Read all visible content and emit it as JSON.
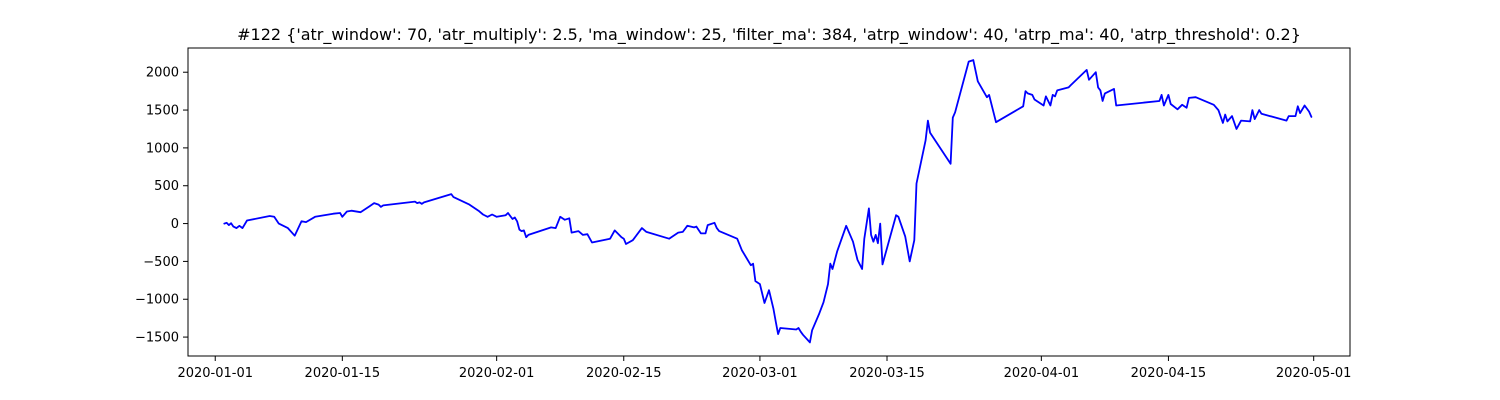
{
  "chart_data": {
    "type": "line",
    "title": "#122 {'atr_window': 70, 'atr_multiply': 2.5, 'ma_window': 25, 'filter_ma': 384, 'atrp_window': 40, 'atrp_ma': 40, 'atrp_threshold': 0.2}",
    "xlabel": "",
    "ylabel": "",
    "grid": false,
    "legend": "none",
    "x_axis": {
      "type": "date",
      "range": [
        "2019-12-29",
        "2020-05-05"
      ],
      "ticks": [
        "2020-01-01",
        "2020-01-15",
        "2020-02-01",
        "2020-02-15",
        "2020-03-01",
        "2020-03-15",
        "2020-04-01",
        "2020-04-15",
        "2020-05-01"
      ]
    },
    "y_axis": {
      "range": [
        -1750,
        2320
      ],
      "ticks": [
        -1500,
        -1000,
        -500,
        0,
        500,
        1000,
        1500,
        2000
      ]
    },
    "series": [
      {
        "color": "#0000ff",
        "points": [
          [
            "2020-01-02",
            0
          ],
          [
            "2020-01-02 06:00",
            10
          ],
          [
            "2020-01-02 12:00",
            -20
          ],
          [
            "2020-01-02 18:00",
            5
          ],
          [
            "2020-01-03",
            -40
          ],
          [
            "2020-01-03 08:00",
            -60
          ],
          [
            "2020-01-03 16:00",
            -30
          ],
          [
            "2020-01-04",
            -60
          ],
          [
            "2020-01-04 12:00",
            40
          ],
          [
            "2020-01-07",
            100
          ],
          [
            "2020-01-07 12:00",
            90
          ],
          [
            "2020-01-08",
            0
          ],
          [
            "2020-01-09",
            -60
          ],
          [
            "2020-01-09 18:00",
            -160
          ],
          [
            "2020-01-10 12:00",
            30
          ],
          [
            "2020-01-11",
            20
          ],
          [
            "2020-01-12",
            90
          ],
          [
            "2020-01-14",
            130
          ],
          [
            "2020-01-14 18:00",
            140
          ],
          [
            "2020-01-15",
            90
          ],
          [
            "2020-01-15 12:00",
            160
          ],
          [
            "2020-01-16",
            170
          ],
          [
            "2020-01-17",
            150
          ],
          [
            "2020-01-18",
            230
          ],
          [
            "2020-01-18 12:00",
            270
          ],
          [
            "2020-01-19",
            250
          ],
          [
            "2020-01-19 06:00",
            220
          ],
          [
            "2020-01-19 12:00",
            240
          ],
          [
            "2020-01-23",
            290
          ],
          [
            "2020-01-23 06:00",
            270
          ],
          [
            "2020-01-23 12:00",
            280
          ],
          [
            "2020-01-23 18:00",
            260
          ],
          [
            "2020-01-24",
            280
          ],
          [
            "2020-01-27",
            390
          ],
          [
            "2020-01-27 06:00",
            350
          ],
          [
            "2020-01-29",
            250
          ],
          [
            "2020-01-30",
            170
          ],
          [
            "2020-01-30 12:00",
            120
          ],
          [
            "2020-01-31",
            90
          ],
          [
            "2020-01-31 12:00",
            120
          ],
          [
            "2020-02-01",
            90
          ],
          [
            "2020-02-02",
            110
          ],
          [
            "2020-02-02 06:00",
            140
          ],
          [
            "2020-02-02 18:00",
            60
          ],
          [
            "2020-02-03",
            80
          ],
          [
            "2020-02-03 06:00",
            30
          ],
          [
            "2020-02-03 12:00",
            -80
          ],
          [
            "2020-02-03 18:00",
            -100
          ],
          [
            "2020-02-04",
            -90
          ],
          [
            "2020-02-04 06:00",
            -180
          ],
          [
            "2020-02-04 12:00",
            -150
          ],
          [
            "2020-02-07",
            -50
          ],
          [
            "2020-02-07 12:00",
            -60
          ],
          [
            "2020-02-08",
            90
          ],
          [
            "2020-02-08 12:00",
            50
          ],
          [
            "2020-02-09",
            70
          ],
          [
            "2020-02-09 06:00",
            -120
          ],
          [
            "2020-02-10",
            -100
          ],
          [
            "2020-02-10 12:00",
            -150
          ],
          [
            "2020-02-11",
            -140
          ],
          [
            "2020-02-11 12:00",
            -250
          ],
          [
            "2020-02-13 12:00",
            -200
          ],
          [
            "2020-02-14",
            -90
          ],
          [
            "2020-02-14 18:00",
            -180
          ],
          [
            "2020-02-15",
            -200
          ],
          [
            "2020-02-15 06:00",
            -270
          ],
          [
            "2020-02-16",
            -220
          ],
          [
            "2020-02-17",
            -60
          ],
          [
            "2020-02-17 12:00",
            -110
          ],
          [
            "2020-02-20",
            -200
          ],
          [
            "2020-02-21",
            -120
          ],
          [
            "2020-02-21 12:00",
            -110
          ],
          [
            "2020-02-22",
            -30
          ],
          [
            "2020-02-22 18:00",
            -50
          ],
          [
            "2020-02-23",
            -40
          ],
          [
            "2020-02-23 12:00",
            -130
          ],
          [
            "2020-02-24",
            -130
          ],
          [
            "2020-02-24 06:00",
            -20
          ],
          [
            "2020-02-25",
            10
          ],
          [
            "2020-02-25 06:00",
            -60
          ],
          [
            "2020-02-25 12:00",
            -100
          ],
          [
            "2020-02-27 12:00",
            -200
          ],
          [
            "2020-02-28",
            -350
          ],
          [
            "2020-02-28 12:00",
            -450
          ],
          [
            "2020-02-29",
            -550
          ],
          [
            "2020-02-29 06:00",
            -530
          ],
          [
            "2020-02-29 12:00",
            -760
          ],
          [
            "2020-03-01",
            -800
          ],
          [
            "2020-03-01 12:00",
            -1050
          ],
          [
            "2020-03-02",
            -880
          ],
          [
            "2020-03-02 12:00",
            -1130
          ],
          [
            "2020-03-02 18:00",
            -1300
          ],
          [
            "2020-03-03",
            -1460
          ],
          [
            "2020-03-03 06:00",
            -1380
          ],
          [
            "2020-03-05",
            -1400
          ],
          [
            "2020-03-05 06:00",
            -1380
          ],
          [
            "2020-03-05 12:00",
            -1430
          ],
          [
            "2020-03-05 18:00",
            -1470
          ],
          [
            "2020-03-06 12:00",
            -1570
          ],
          [
            "2020-03-06 18:00",
            -1410
          ],
          [
            "2020-03-07 12:00",
            -1200
          ],
          [
            "2020-03-08",
            -1040
          ],
          [
            "2020-03-08 12:00",
            -800
          ],
          [
            "2020-03-08 18:00",
            -530
          ],
          [
            "2020-03-09",
            -600
          ],
          [
            "2020-03-09 12:00",
            -370
          ],
          [
            "2020-03-10 12:00",
            -30
          ],
          [
            "2020-03-11 06:00",
            -240
          ],
          [
            "2020-03-11 18:00",
            -480
          ],
          [
            "2020-03-12 06:00",
            -600
          ],
          [
            "2020-03-12 12:00",
            -200
          ],
          [
            "2020-03-13",
            200
          ],
          [
            "2020-03-13 06:00",
            -150
          ],
          [
            "2020-03-13 12:00",
            -240
          ],
          [
            "2020-03-13 18:00",
            -150
          ],
          [
            "2020-03-14",
            -260
          ],
          [
            "2020-03-14 06:00",
            0
          ],
          [
            "2020-03-14 12:00",
            -540
          ],
          [
            "2020-03-16",
            110
          ],
          [
            "2020-03-16 06:00",
            90
          ],
          [
            "2020-03-17",
            -170
          ],
          [
            "2020-03-17 12:00",
            -500
          ],
          [
            "2020-03-18",
            -220
          ],
          [
            "2020-03-18 06:00",
            530
          ],
          [
            "2020-03-19 06:00",
            1100
          ],
          [
            "2020-03-19 12:00",
            1360
          ],
          [
            "2020-03-19 18:00",
            1200
          ],
          [
            "2020-03-22",
            790
          ],
          [
            "2020-03-22 06:00",
            1400
          ],
          [
            "2020-03-22 12:00",
            1470
          ],
          [
            "2020-03-24",
            2140
          ],
          [
            "2020-03-24 12:00",
            2160
          ],
          [
            "2020-03-25",
            1880
          ],
          [
            "2020-03-26",
            1670
          ],
          [
            "2020-03-26 06:00",
            1700
          ],
          [
            "2020-03-27",
            1340
          ],
          [
            "2020-03-30",
            1550
          ],
          [
            "2020-03-30 06:00",
            1750
          ],
          [
            "2020-03-30 12:00",
            1720
          ],
          [
            "2020-03-31",
            1700
          ],
          [
            "2020-03-31 06:00",
            1640
          ],
          [
            "2020-04-01 06:00",
            1560
          ],
          [
            "2020-04-01 12:00",
            1680
          ],
          [
            "2020-04-02",
            1560
          ],
          [
            "2020-04-02 06:00",
            1700
          ],
          [
            "2020-04-02 12:00",
            1680
          ],
          [
            "2020-04-02 18:00",
            1760
          ],
          [
            "2020-04-04",
            1800
          ],
          [
            "2020-04-04 06:00",
            1830
          ],
          [
            "2020-04-06",
            2030
          ],
          [
            "2020-04-06 06:00",
            1900
          ],
          [
            "2020-04-07",
            2000
          ],
          [
            "2020-04-07 06:00",
            1800
          ],
          [
            "2020-04-07 12:00",
            1760
          ],
          [
            "2020-04-07 18:00",
            1620
          ],
          [
            "2020-04-08",
            1720
          ],
          [
            "2020-04-09",
            1780
          ],
          [
            "2020-04-09 06:00",
            1560
          ],
          [
            "2020-04-14",
            1620
          ],
          [
            "2020-04-14 06:00",
            1700
          ],
          [
            "2020-04-14 12:00",
            1560
          ],
          [
            "2020-04-15",
            1700
          ],
          [
            "2020-04-15 06:00",
            1580
          ],
          [
            "2020-04-16",
            1510
          ],
          [
            "2020-04-16 12:00",
            1570
          ],
          [
            "2020-04-17",
            1530
          ],
          [
            "2020-04-17 06:00",
            1660
          ],
          [
            "2020-04-18",
            1670
          ],
          [
            "2020-04-20",
            1570
          ],
          [
            "2020-04-20 12:00",
            1500
          ],
          [
            "2020-04-21",
            1330
          ],
          [
            "2020-04-21 06:00",
            1440
          ],
          [
            "2020-04-21 12:00",
            1350
          ],
          [
            "2020-04-22",
            1420
          ],
          [
            "2020-04-22 12:00",
            1250
          ],
          [
            "2020-04-23",
            1360
          ],
          [
            "2020-04-24",
            1350
          ],
          [
            "2020-04-24 06:00",
            1500
          ],
          [
            "2020-04-24 12:00",
            1380
          ],
          [
            "2020-04-25",
            1500
          ],
          [
            "2020-04-25 06:00",
            1450
          ],
          [
            "2020-04-28",
            1360
          ],
          [
            "2020-04-28 06:00",
            1420
          ],
          [
            "2020-04-29",
            1420
          ],
          [
            "2020-04-29 06:00",
            1550
          ],
          [
            "2020-04-29 12:00",
            1460
          ],
          [
            "2020-04-30",
            1560
          ],
          [
            "2020-04-30 12:00",
            1480
          ],
          [
            "2020-04-30 18:00",
            1410
          ]
        ]
      }
    ]
  }
}
